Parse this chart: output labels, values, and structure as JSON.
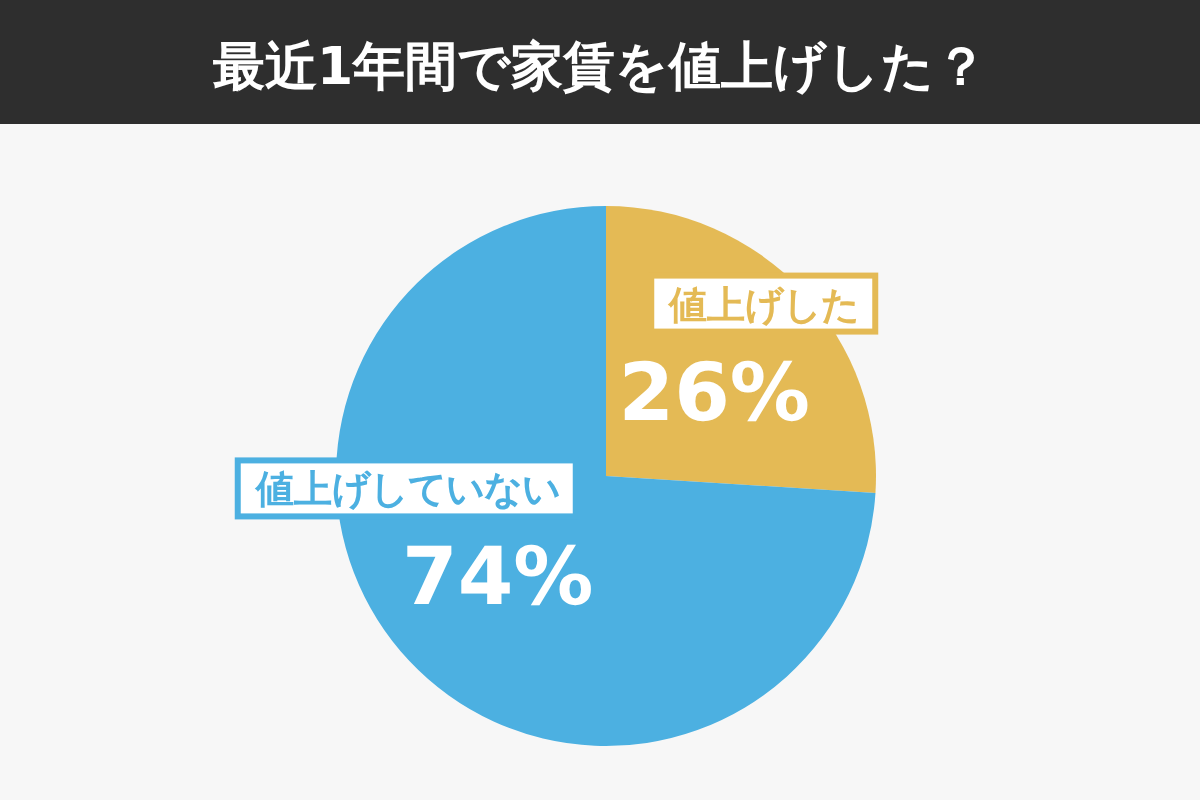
{
  "chart_data": {
    "type": "pie",
    "title": "最近1年間で家賃を値上げした？",
    "categories": [
      "値上げした",
      "値上げしていない"
    ],
    "values": [
      26,
      74
    ],
    "colors": [
      "#e4ba55",
      "#4cb0e1"
    ],
    "value_labels": [
      "26%",
      "74%"
    ]
  }
}
